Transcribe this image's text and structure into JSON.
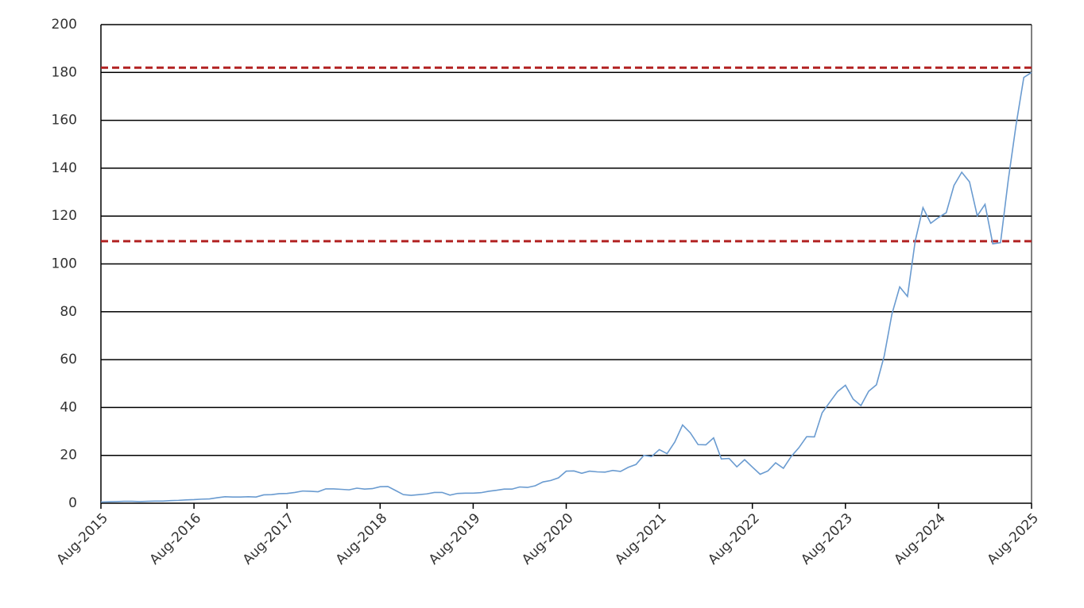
{
  "chart_data": {
    "type": "line",
    "x": [
      "2015-08",
      "2015-09",
      "2015-10",
      "2015-11",
      "2015-12",
      "2016-01",
      "2016-02",
      "2016-03",
      "2016-04",
      "2016-05",
      "2016-06",
      "2016-07",
      "2016-08",
      "2016-09",
      "2016-10",
      "2016-11",
      "2016-12",
      "2017-01",
      "2017-02",
      "2017-03",
      "2017-04",
      "2017-05",
      "2017-06",
      "2017-07",
      "2017-08",
      "2017-09",
      "2017-10",
      "2017-11",
      "2017-12",
      "2018-01",
      "2018-02",
      "2018-03",
      "2018-04",
      "2018-05",
      "2018-06",
      "2018-07",
      "2018-08",
      "2018-09",
      "2018-10",
      "2018-11",
      "2018-12",
      "2019-01",
      "2019-02",
      "2019-03",
      "2019-04",
      "2019-05",
      "2019-06",
      "2019-07",
      "2019-08",
      "2019-09",
      "2019-10",
      "2019-11",
      "2019-12",
      "2020-01",
      "2020-02",
      "2020-03",
      "2020-04",
      "2020-05",
      "2020-06",
      "2020-07",
      "2020-08",
      "2020-09",
      "2020-10",
      "2020-11",
      "2020-12",
      "2021-01",
      "2021-02",
      "2021-03",
      "2021-04",
      "2021-05",
      "2021-06",
      "2021-07",
      "2021-08",
      "2021-09",
      "2021-10",
      "2021-11",
      "2021-12",
      "2022-01",
      "2022-02",
      "2022-03",
      "2022-04",
      "2022-05",
      "2022-06",
      "2022-07",
      "2022-08",
      "2022-09",
      "2022-10",
      "2022-11",
      "2022-12",
      "2023-01",
      "2023-02",
      "2023-03",
      "2023-04",
      "2023-05",
      "2023-06",
      "2023-07",
      "2023-08",
      "2023-09",
      "2023-10",
      "2023-11",
      "2023-12",
      "2024-01",
      "2024-02",
      "2024-03",
      "2024-04",
      "2024-05",
      "2024-06",
      "2024-07",
      "2024-08",
      "2024-09",
      "2024-10",
      "2024-11",
      "2024-12",
      "2025-01",
      "2025-02",
      "2025-03",
      "2025-04",
      "2025-05",
      "2025-06",
      "2025-07",
      "2025-08"
    ],
    "series": [
      {
        "color": "#6a9bd0",
        "values": [
          0.5,
          0.6,
          0.7,
          0.8,
          0.8,
          0.7,
          0.8,
          0.9,
          0.9,
          1.1,
          1.2,
          1.4,
          1.5,
          1.7,
          1.8,
          2.3,
          2.7,
          2.6,
          2.6,
          2.7,
          2.6,
          3.5,
          3.6,
          4.0,
          4.1,
          4.5,
          5.1,
          5.0,
          4.8,
          6.0,
          6.0,
          5.8,
          5.6,
          6.3,
          5.9,
          6.1,
          6.9,
          7.0,
          5.3,
          3.6,
          3.3,
          3.6,
          3.9,
          4.5,
          4.5,
          3.4,
          4.1,
          4.2,
          4.2,
          4.4,
          5.0,
          5.4,
          5.9,
          5.9,
          6.8,
          6.6,
          7.3,
          8.9,
          9.5,
          10.6,
          13.4,
          13.5,
          12.5,
          13.4,
          13.1,
          13.0,
          13.7,
          13.3,
          15.0,
          16.2,
          20.0,
          19.5,
          22.4,
          20.7,
          25.6,
          32.7,
          29.4,
          24.5,
          24.4,
          27.3,
          18.5,
          18.7,
          15.2,
          18.2,
          15.1,
          12.1,
          13.5,
          16.9,
          14.6,
          19.5,
          23.2,
          27.8,
          27.7,
          37.8,
          42.3,
          46.7,
          49.3,
          43.5,
          40.8,
          46.8,
          49.5,
          61.5,
          79.1,
          90.4,
          86.4,
          109.6,
          123.5,
          117.0,
          119.4,
          121.4,
          132.8,
          138.3,
          134.3,
          120.1,
          124.9,
          108.4,
          108.9,
          135.1,
          158.0,
          177.9,
          180.0
        ]
      }
    ],
    "reference_lines": [
      {
        "value": 182,
        "color": "#b22222"
      },
      {
        "value": 109.5,
        "color": "#b22222"
      }
    ],
    "xlim": [
      "2015-08",
      "2025-08"
    ],
    "xticks": [
      {
        "value": "2015-08",
        "label": "Aug-2015"
      },
      {
        "value": "2016-08",
        "label": "Aug-2016"
      },
      {
        "value": "2017-08",
        "label": "Aug-2017"
      },
      {
        "value": "2018-08",
        "label": "Aug-2018"
      },
      {
        "value": "2019-08",
        "label": "Aug-2019"
      },
      {
        "value": "2020-08",
        "label": "Aug-2020"
      },
      {
        "value": "2021-08",
        "label": "Aug-2021"
      },
      {
        "value": "2022-08",
        "label": "Aug-2022"
      },
      {
        "value": "2023-08",
        "label": "Aug-2023"
      },
      {
        "value": "2024-08",
        "label": "Aug-2024"
      },
      {
        "value": "2025-08",
        "label": "Aug-2025"
      }
    ],
    "ylim": [
      0,
      200
    ],
    "yticks": [
      0,
      20,
      40,
      60,
      80,
      100,
      120,
      140,
      160,
      180,
      200
    ],
    "grid": true
  }
}
